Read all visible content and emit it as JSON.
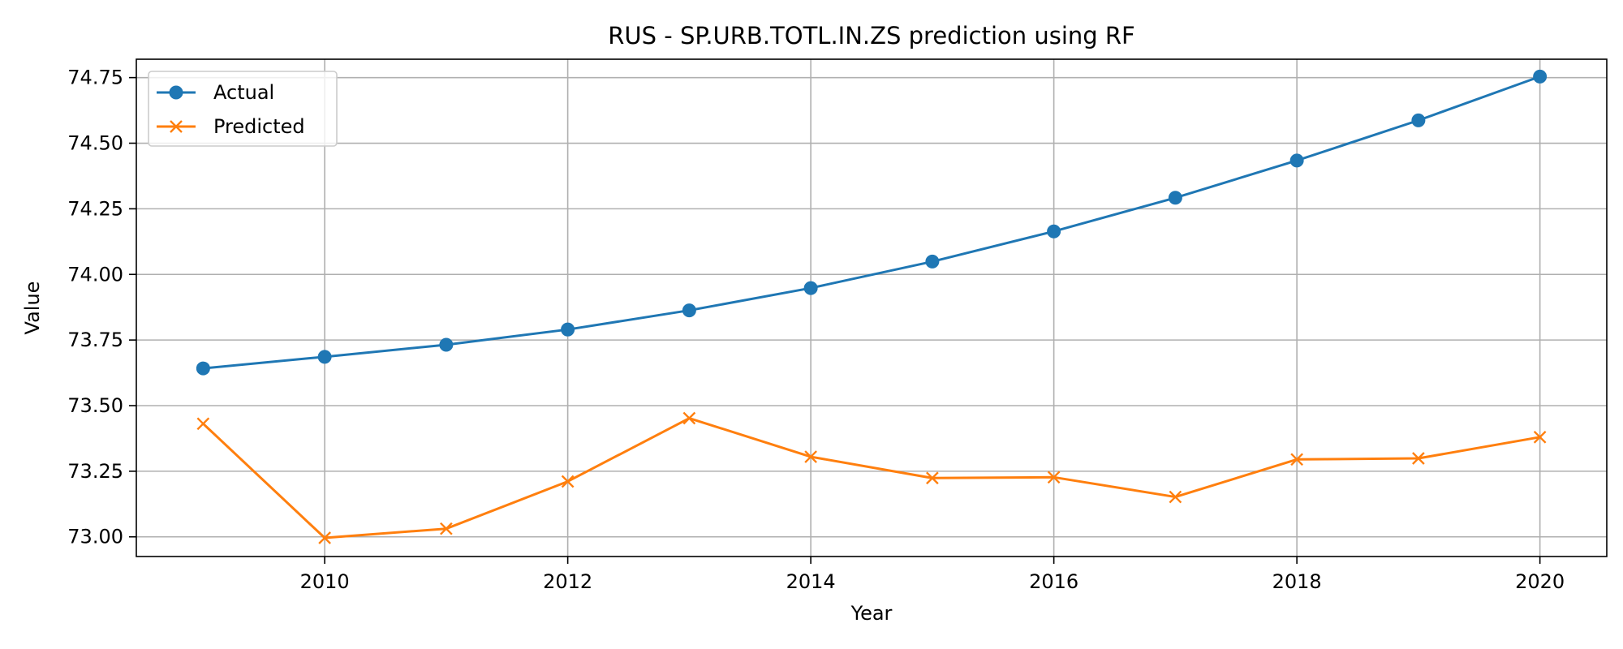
{
  "chart_data": {
    "type": "line",
    "title": "RUS - SP.URB.TOTL.IN.ZS prediction using RF",
    "xlabel": "Year",
    "ylabel": "Value",
    "x": [
      2009,
      2010,
      2011,
      2012,
      2013,
      2014,
      2015,
      2016,
      2017,
      2018,
      2019,
      2020
    ],
    "xlim": [
      2008.45,
      2020.55
    ],
    "ylim": [
      72.925,
      74.82
    ],
    "x_ticks": [
      2010,
      2012,
      2014,
      2016,
      2018,
      2020
    ],
    "x_tick_labels": [
      "2010",
      "2012",
      "2014",
      "2016",
      "2018",
      "2020"
    ],
    "y_ticks": [
      73.0,
      73.25,
      73.5,
      73.75,
      74.0,
      74.25,
      74.5,
      74.75
    ],
    "y_tick_labels": [
      "73.00",
      "73.25",
      "73.50",
      "73.75",
      "74.00",
      "74.25",
      "74.50",
      "74.75"
    ],
    "grid": true,
    "legend_position": "upper-left",
    "series": [
      {
        "name": "Actual",
        "marker": "circle",
        "color": "#1f77b4",
        "values": [
          73.642,
          73.686,
          73.732,
          73.79,
          73.863,
          73.948,
          74.049,
          74.164,
          74.292,
          74.434,
          74.587,
          74.754
        ]
      },
      {
        "name": "Predicted",
        "marker": "x",
        "color": "#ff7f0e",
        "values": [
          73.431,
          72.996,
          73.031,
          73.211,
          73.452,
          73.305,
          73.224,
          73.227,
          73.152,
          73.295,
          73.299,
          73.38
        ]
      }
    ]
  }
}
